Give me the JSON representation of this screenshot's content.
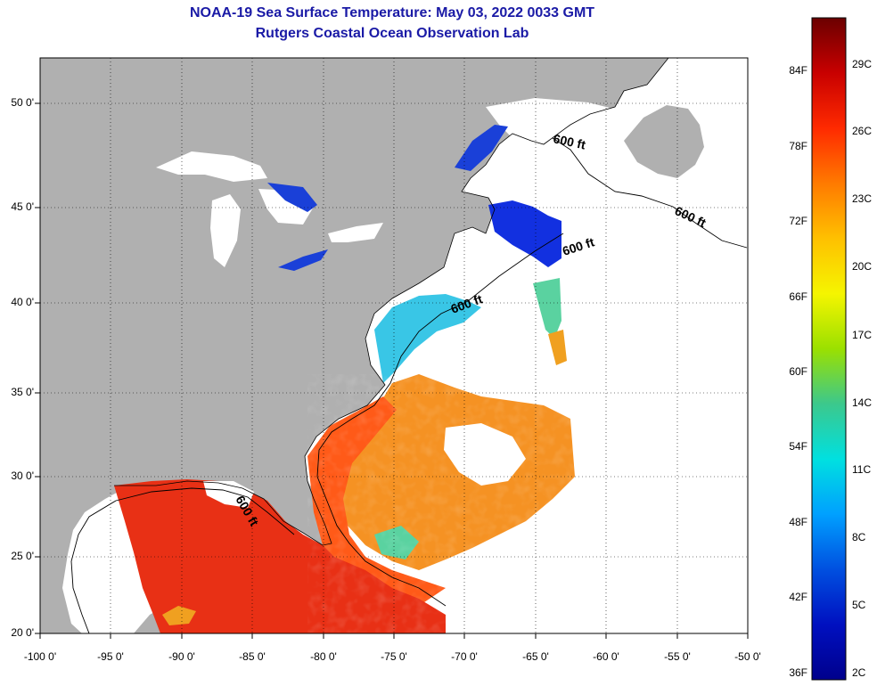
{
  "header": {
    "title": "NOAA-19 Sea Surface Temperature:  May 03, 2022 0033 GMT",
    "subtitle": "Rutgers Coastal Ocean Observation Lab"
  },
  "map": {
    "lat_labels": [
      "50 0'",
      "45 0'",
      "40 0'",
      "35 0'",
      "30 0'",
      "25 0'",
      "20 0'"
    ],
    "lon_labels": [
      "-100 0'",
      "-95 0'",
      "-90 0'",
      "-85 0'",
      "-80 0'",
      "-75 0'",
      "-70 0'",
      "-65 0'",
      "-60 0'",
      "-55 0'",
      "-50 0'"
    ],
    "contour_labels": [
      "600 ft",
      "600 ft",
      "600 ft",
      "600 ft",
      "600 ft"
    ],
    "colors": {
      "land": "#b0b0b0",
      "frame": "#000000",
      "title": "#1a1aa6"
    }
  },
  "colorbar": {
    "fahrenheit_labels": [
      "84F",
      "78F",
      "72F",
      "66F",
      "60F",
      "54F",
      "48F",
      "42F",
      "36F"
    ],
    "celsius_labels": [
      "29C",
      "26C",
      "23C",
      "20C",
      "17C",
      "14C",
      "11C",
      "8C",
      "5C",
      "2C"
    ],
    "gradient": [
      "#6b0000",
      "#c80000",
      "#ff2a00",
      "#ff7a00",
      "#ffc000",
      "#f5f500",
      "#9be000",
      "#3cc88c",
      "#00e0e0",
      "#00a0ff",
      "#0050e0",
      "#0010c0",
      "#00008c"
    ]
  }
}
